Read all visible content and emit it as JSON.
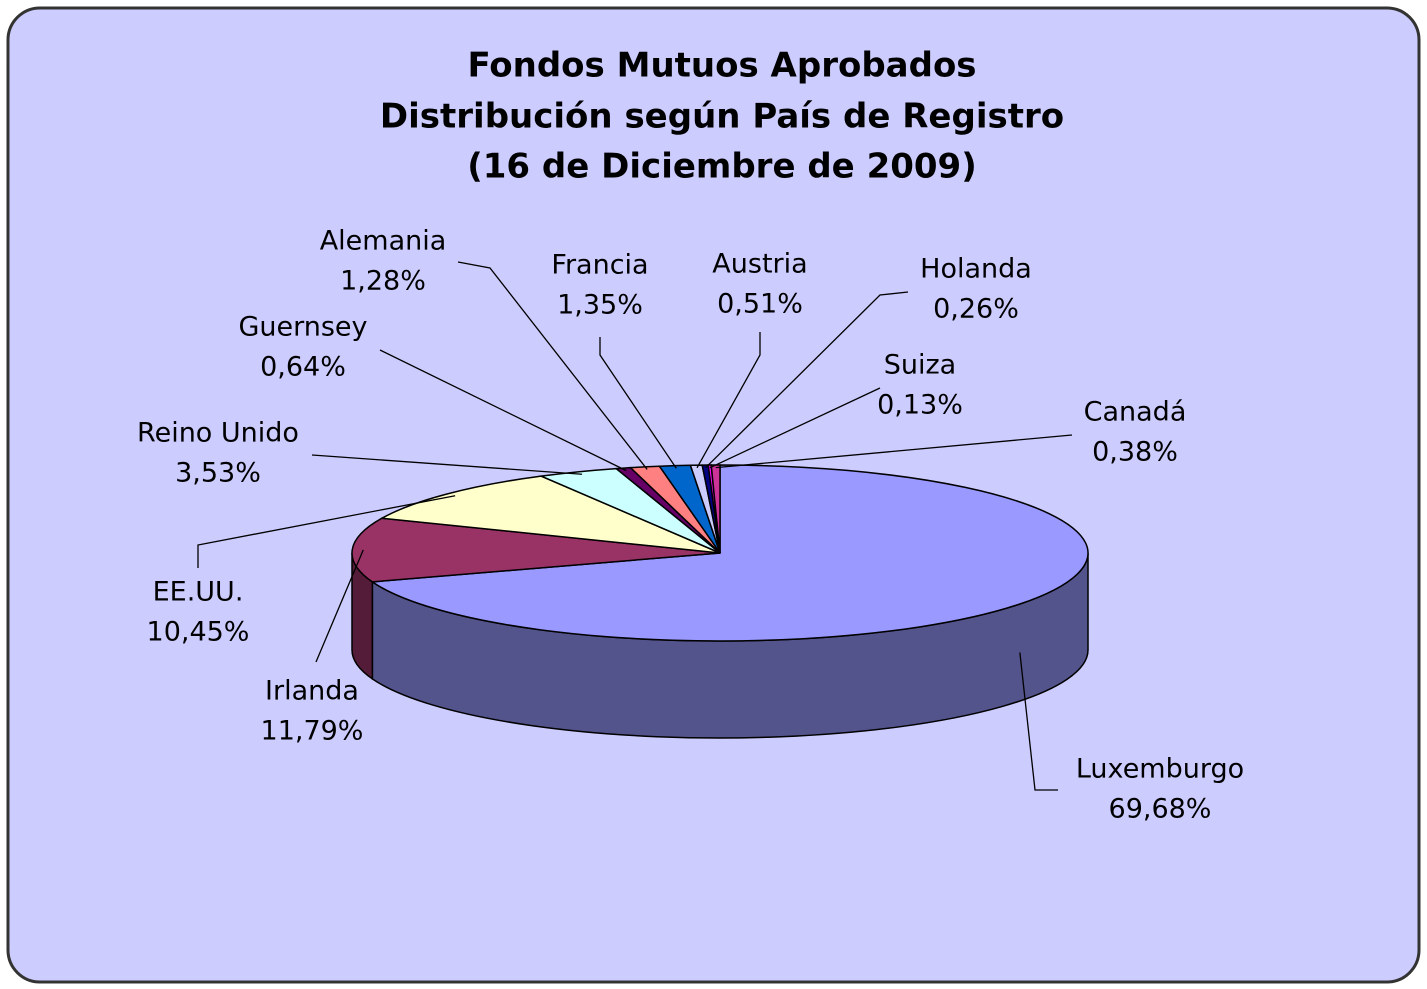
{
  "chart_data": {
    "type": "pie3d",
    "title": [
      "Fondos Mutuos Aprobados",
      "Distribución según País de Registro",
      "(16 de Diciembre de 2009)"
    ],
    "categories": [
      "Luxemburgo",
      "Irlanda",
      "EE.UU.",
      "Reino Unido",
      "Guernsey",
      "Alemania",
      "Francia",
      "Austria",
      "Holanda",
      "Suiza",
      "Canadá"
    ],
    "values": [
      69.68,
      11.79,
      10.45,
      3.53,
      0.64,
      1.28,
      1.35,
      0.51,
      0.26,
      0.13,
      0.38
    ],
    "value_labels": [
      "69,68%",
      "11,79%",
      "10,45%",
      "3,53%",
      "0,64%",
      "1,28%",
      "1,35%",
      "0,51%",
      "0,26%",
      "0,13%",
      "0,38%"
    ],
    "colors": [
      "#9999ff",
      "#993366",
      "#ffffcc",
      "#ccffff",
      "#660066",
      "#ff8080",
      "#0066cc",
      "#ccccff",
      "#000080",
      "#ff00ff",
      "#cc3399"
    ]
  }
}
